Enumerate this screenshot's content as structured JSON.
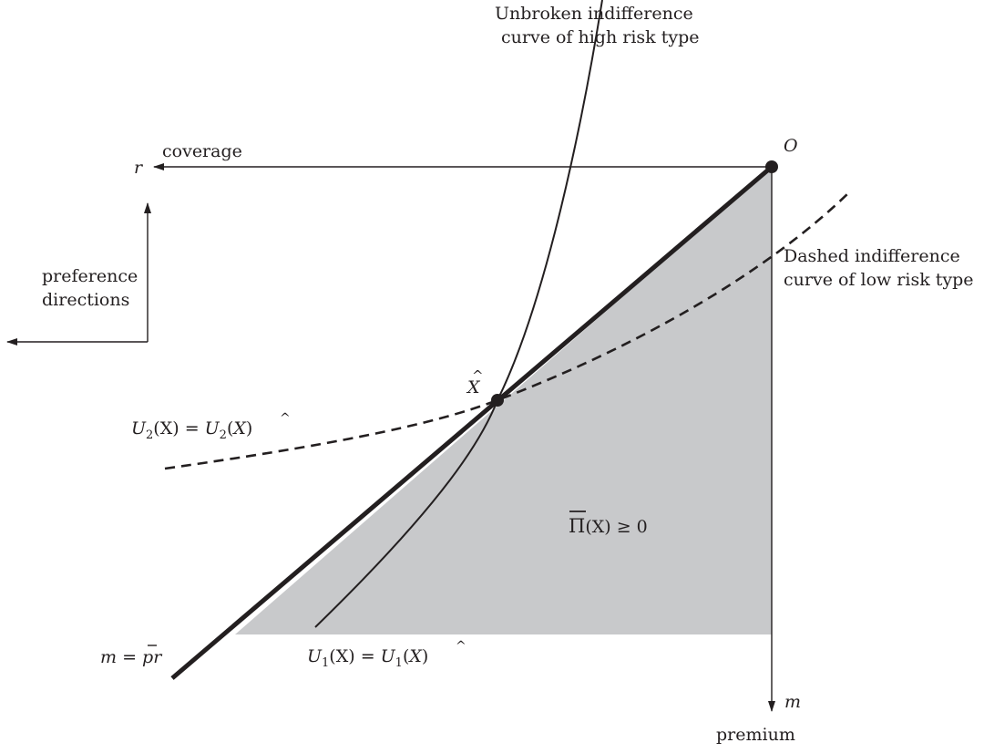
{
  "diagram": {
    "axes": {
      "r": "r",
      "r_caption": "coverage",
      "m": "m",
      "m_caption": "premium",
      "origin": "O"
    },
    "preference": {
      "line1": "preference",
      "line2": "directions"
    },
    "point": {
      "name": "X",
      "hat": "^"
    },
    "high_risk_caption": {
      "line1": "Unbroken indifference",
      "line2": "curve of high risk type"
    },
    "low_risk_caption": {
      "line1": "Dashed indifference",
      "line2": "curve of low risk type"
    },
    "u2_label": {
      "U": "U",
      "sub": "2",
      "mid": "(X) = ",
      "U2": "U",
      "sub2": "2",
      "open": "(",
      "X": "X",
      "close": ")"
    },
    "u1_label": {
      "U": "U",
      "sub": "1",
      "mid": "(X) = ",
      "U2": "U",
      "sub2": "1",
      "open": "(",
      "X": "X",
      "close": ")"
    },
    "zero_profit_line": {
      "m": "m",
      "eq": " = ",
      "p": "p",
      "r": "r"
    },
    "profit_region": {
      "pi": "Π",
      "rest": "(X) ≥ 0"
    },
    "colors": {
      "ink": "#231f20",
      "region": "#c8c9cb"
    }
  }
}
